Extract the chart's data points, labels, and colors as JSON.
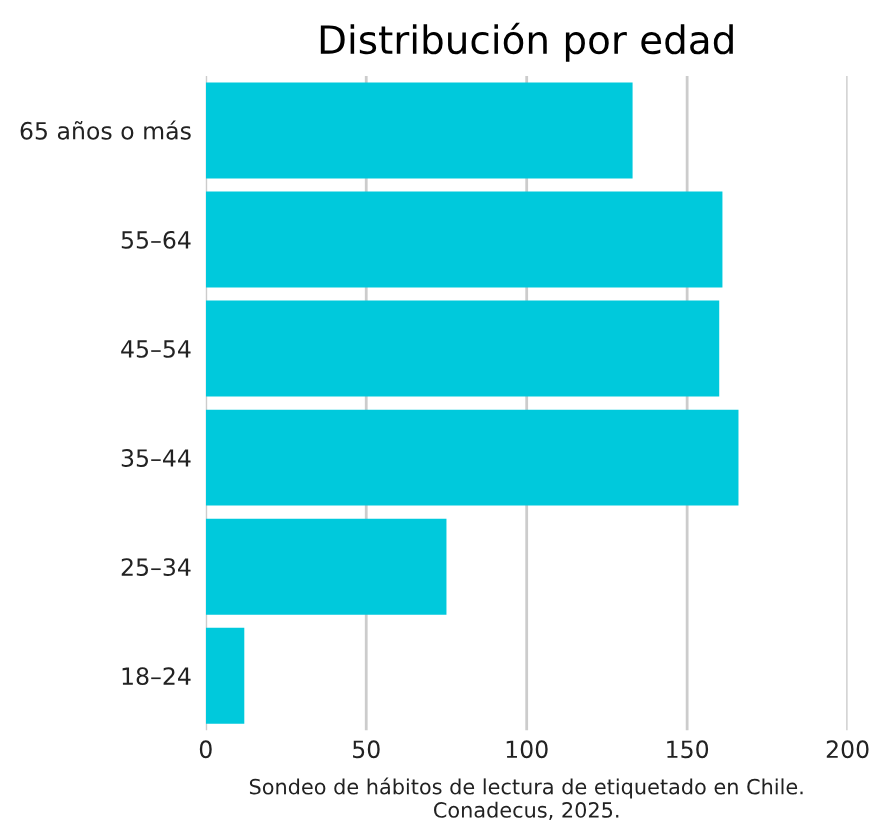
{
  "chart_data": {
    "type": "bar",
    "orientation": "horizontal",
    "title": "Distribución por edad",
    "categories": [
      "65 años o más",
      "55–64",
      "45–54",
      "35–44",
      "25–34",
      "18–24"
    ],
    "values": [
      133,
      161,
      160,
      166,
      75,
      12
    ],
    "color": "#00c9dc",
    "xlim": [
      0,
      200
    ],
    "xticks": [
      0,
      50,
      100,
      150,
      200
    ],
    "grid": "x",
    "legend": false,
    "annotations": [
      "Sondeo de hábitos de lectura de etiquetado en Chile.\nConadecus, 2025."
    ]
  }
}
